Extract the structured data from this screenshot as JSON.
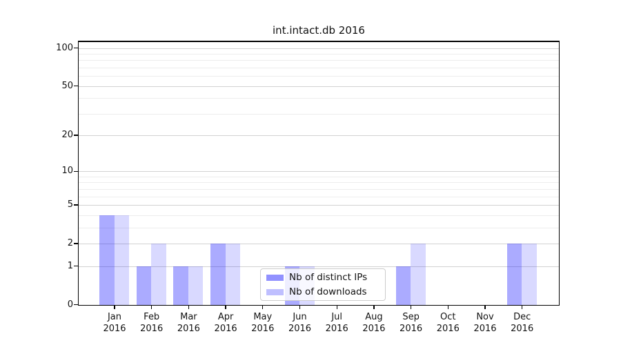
{
  "window": {
    "background": "#ffffff"
  },
  "chart_data": {
    "type": "bar",
    "title": "int.intact.db 2016",
    "xlabel": "",
    "ylabel": "",
    "categories": [
      "Jan",
      "Feb",
      "Mar",
      "Apr",
      "May",
      "Jun",
      "Jul",
      "Aug",
      "Sep",
      "Oct",
      "Nov",
      "Dec"
    ],
    "x_year_label": "2016",
    "series": [
      {
        "name": "Nb of distinct IPs",
        "base_color": "#0000ff",
        "alpha": 0.33,
        "effective_color": "#aaaaf7",
        "values": [
          4,
          1,
          1,
          2,
          0,
          1,
          0,
          0,
          1,
          0,
          0,
          2
        ]
      },
      {
        "name": "Nb of downloads",
        "base_color": "#0000ff",
        "alpha": 0.15,
        "effective_color": "#d9d9f9",
        "values": [
          4,
          2,
          1,
          2,
          0,
          1,
          0,
          0,
          2,
          0,
          0,
          2
        ]
      }
    ],
    "yaxis": {
      "scale": "log10(value+1)",
      "major_ticks": [
        0,
        1,
        2,
        5,
        10,
        20,
        50,
        100
      ],
      "minor_gridline_values": [
        3,
        4,
        6,
        7,
        8,
        9,
        30,
        40,
        60,
        70,
        80,
        90
      ],
      "max": 101
    },
    "grid": true,
    "legend_position": "lower center"
  },
  "colors": {
    "major_grid": "#d2d2d2",
    "minor_grid": "#ededed",
    "axis": "#000000",
    "legend_border": "#cccccc",
    "legend_background": "#ffffff"
  }
}
